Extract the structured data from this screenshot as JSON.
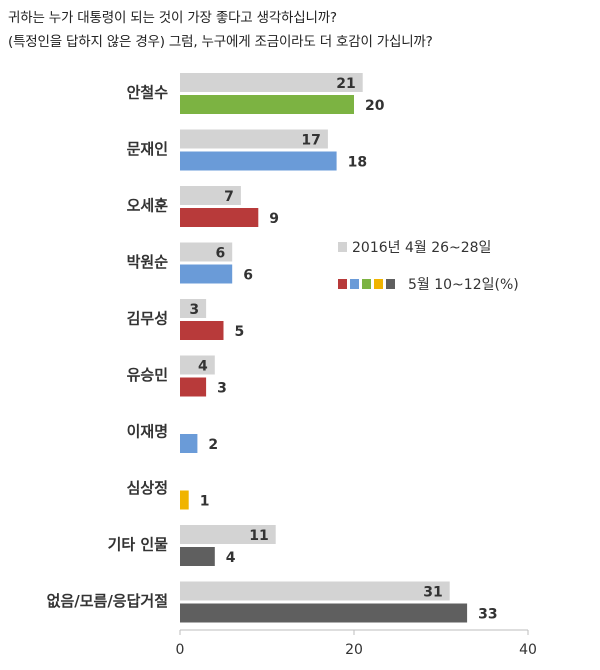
{
  "title_lines": [
    "귀하는 누가 대통령이 되는 것이 가장 좋다고 생각하십니까?",
    "(특정인을 답하지 않은 경우) 그럼, 누구에게 조금이라도 더 호감이 가십니까?"
  ],
  "chart_data": {
    "type": "bar",
    "orientation": "horizontal",
    "categories": [
      "안철수",
      "문재인",
      "오세훈",
      "박원순",
      "김무성",
      "유승민",
      "이재명",
      "심상정",
      "기타 인물",
      "없음/모름/응답거절"
    ],
    "series": [
      {
        "name": "2016년 4월 26~28일",
        "values": [
          21,
          17,
          7,
          6,
          3,
          4,
          null,
          null,
          11,
          31
        ]
      },
      {
        "name": "5월 10~12일(%)",
        "values": [
          20,
          18,
          9,
          6,
          5,
          3,
          2,
          1,
          4,
          33
        ]
      }
    ],
    "xlim": [
      0,
      40
    ],
    "xticks": [
      0,
      20,
      40
    ],
    "legend_position": "right",
    "colors": {
      "series1": "#d3d3d3",
      "series2_by_category": [
        "#7cb342",
        "#6a9bd8",
        "#b83a3a",
        "#6a9bd8",
        "#b83a3a",
        "#b83a3a",
        "#6a9bd8",
        "#f0b400",
        "#5f5f5f",
        "#5f5f5f"
      ],
      "legend_swatches": [
        "#b83a3a",
        "#6a9bd8",
        "#7cb342",
        "#f0b400",
        "#5f5f5f"
      ]
    }
  }
}
